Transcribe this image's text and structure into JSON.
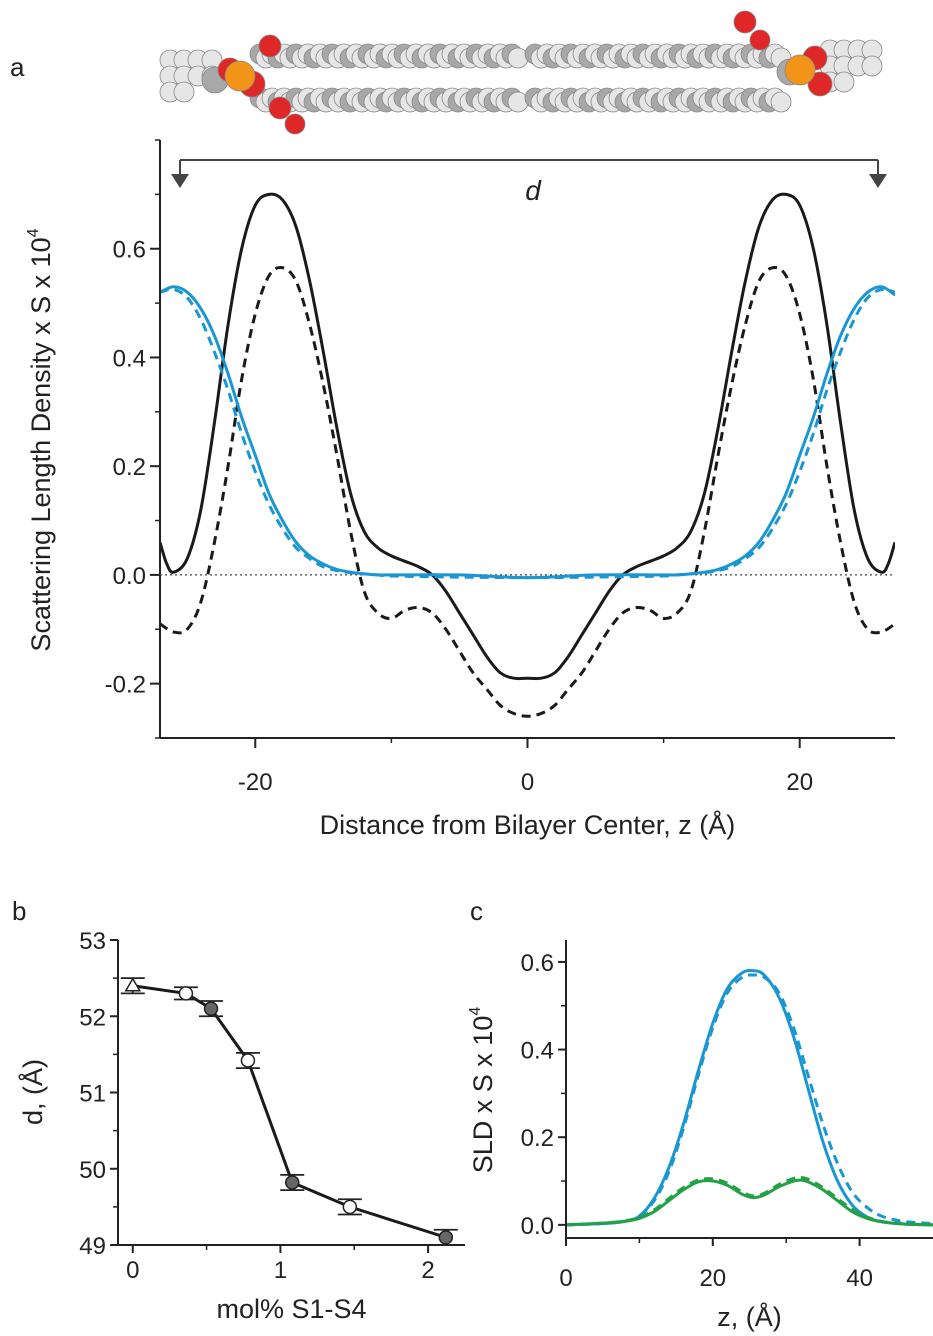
{
  "panels": {
    "a": "a",
    "b": "b",
    "c": "c"
  },
  "annotations": {
    "d_label": "d"
  },
  "colors": {
    "black": "#1a1a1a",
    "blue": "#1a96d2",
    "green": "#22a146",
    "carbon": "#a8a8a8",
    "hydrogen": "#e6e6e6",
    "oxygen": "#e02727",
    "phosphorus": "#f29418"
  },
  "molecule": {
    "description_icon": "lipid-bilayer-spacefill-icon"
  },
  "chart_data": [
    {
      "id": "a",
      "type": "line",
      "xlabel": "Distance from Bilayer Center, z (Å)",
      "ylabel": "Scattering Length Density x S x 10",
      "ylabel_sup": "4",
      "xlim": [
        -27,
        27
      ],
      "ylim": [
        -0.3,
        0.8
      ],
      "xticks": [
        -20,
        0,
        20
      ],
      "xtick_labels": [
        "-20",
        "0",
        "20"
      ],
      "yticks": [
        -0.2,
        0.0,
        0.2,
        0.4,
        0.6
      ],
      "ytick_labels": [
        "-0.2",
        "0.0",
        "0.2",
        "0.4",
        "0.6"
      ],
      "reference_line": 0.0,
      "series": [
        {
          "style": "solid",
          "color": "#1a1a1a",
          "x": [
            -27,
            -26.5,
            -26,
            -25,
            -24,
            -23,
            -22,
            -21,
            -20,
            -19,
            -18,
            -17,
            -16,
            -15,
            -14,
            -13,
            -12,
            -11,
            -10,
            -9,
            -8,
            -7,
            -6,
            -5,
            -4,
            -3,
            -2,
            -1,
            0,
            1,
            2,
            3,
            4,
            5,
            6,
            7,
            8,
            9,
            10,
            11,
            12,
            13,
            14,
            15,
            16,
            17,
            18,
            19,
            20,
            21,
            22,
            23,
            24,
            25,
            26,
            26.5,
            27
          ],
          "y": [
            0.06,
            0.02,
            0.005,
            0.03,
            0.12,
            0.28,
            0.46,
            0.6,
            0.68,
            0.7,
            0.69,
            0.64,
            0.54,
            0.41,
            0.27,
            0.15,
            0.08,
            0.05,
            0.035,
            0.025,
            0.015,
            0.0,
            -0.03,
            -0.07,
            -0.11,
            -0.15,
            -0.18,
            -0.19,
            -0.19,
            -0.19,
            -0.18,
            -0.15,
            -0.11,
            -0.07,
            -0.03,
            0.0,
            0.015,
            0.025,
            0.035,
            0.05,
            0.08,
            0.15,
            0.27,
            0.41,
            0.54,
            0.64,
            0.69,
            0.7,
            0.68,
            0.6,
            0.46,
            0.28,
            0.12,
            0.03,
            0.005,
            0.02,
            0.06
          ]
        },
        {
          "style": "dashed",
          "color": "#1a1a1a",
          "x": [
            -27,
            -26,
            -25,
            -24,
            -23,
            -22,
            -21,
            -20,
            -19,
            -18,
            -17,
            -16,
            -15,
            -14,
            -13,
            -12,
            -11,
            -10,
            -9,
            -8,
            -7,
            -6,
            -5,
            -4,
            -3,
            -2,
            -1,
            0,
            1,
            2,
            3,
            4,
            5,
            6,
            7,
            8,
            9,
            10,
            11,
            12,
            13,
            14,
            15,
            16,
            17,
            18,
            19,
            20,
            21,
            22,
            23,
            24,
            25,
            26,
            27
          ],
          "y": [
            -0.09,
            -0.105,
            -0.1,
            -0.05,
            0.06,
            0.2,
            0.36,
            0.48,
            0.55,
            0.565,
            0.54,
            0.46,
            0.35,
            0.22,
            0.08,
            -0.03,
            -0.07,
            -0.08,
            -0.065,
            -0.06,
            -0.07,
            -0.1,
            -0.14,
            -0.18,
            -0.21,
            -0.24,
            -0.255,
            -0.26,
            -0.255,
            -0.24,
            -0.21,
            -0.18,
            -0.14,
            -0.1,
            -0.07,
            -0.06,
            -0.065,
            -0.08,
            -0.07,
            -0.03,
            0.08,
            0.22,
            0.35,
            0.46,
            0.54,
            0.565,
            0.55,
            0.48,
            0.36,
            0.2,
            0.06,
            -0.05,
            -0.1,
            -0.105,
            -0.09
          ]
        },
        {
          "style": "solid",
          "color": "#1a96d2",
          "x": [
            -27,
            -26,
            -25,
            -24,
            -23,
            -22,
            -21,
            -20,
            -19,
            -18,
            -17,
            -16,
            -15,
            -14,
            -13,
            -12,
            -11,
            -10,
            -5,
            0,
            5,
            10,
            11,
            12,
            13,
            14,
            15,
            16,
            17,
            18,
            19,
            20,
            21,
            22,
            23,
            24,
            25,
            26,
            27
          ],
          "y": [
            0.52,
            0.53,
            0.52,
            0.49,
            0.44,
            0.37,
            0.29,
            0.22,
            0.15,
            0.1,
            0.06,
            0.035,
            0.02,
            0.01,
            0.005,
            0.002,
            0.0,
            0.0,
            0.0,
            -0.005,
            0.0,
            0.0,
            0.0,
            0.002,
            0.005,
            0.01,
            0.02,
            0.035,
            0.06,
            0.1,
            0.15,
            0.22,
            0.29,
            0.37,
            0.44,
            0.49,
            0.52,
            0.53,
            0.515
          ]
        },
        {
          "style": "dashed",
          "color": "#1a96d2",
          "x": [
            -27,
            -26,
            -25,
            -24,
            -23,
            -22,
            -21,
            -20,
            -19,
            -18,
            -17,
            -16,
            -15,
            -14,
            -13,
            -12,
            -11,
            -10,
            -5,
            0,
            5,
            10,
            11,
            12,
            13,
            14,
            15,
            16,
            17,
            18,
            19,
            20,
            21,
            22,
            23,
            24,
            25,
            26,
            27
          ],
          "y": [
            0.52,
            0.525,
            0.51,
            0.47,
            0.41,
            0.34,
            0.26,
            0.19,
            0.13,
            0.085,
            0.05,
            0.03,
            0.015,
            0.008,
            0.004,
            0.002,
            0.0,
            -0.002,
            -0.004,
            -0.005,
            -0.004,
            -0.002,
            0.0,
            0.002,
            0.004,
            0.008,
            0.015,
            0.03,
            0.05,
            0.085,
            0.13,
            0.19,
            0.26,
            0.34,
            0.41,
            0.47,
            0.51,
            0.525,
            0.52
          ]
        }
      ]
    },
    {
      "id": "b",
      "type": "line",
      "xlabel": "mol% S1-S4",
      "ylabel": "d, (Å)",
      "xlim": [
        -0.1,
        2.25
      ],
      "ylim": [
        49,
        53
      ],
      "xticks": [
        0,
        1,
        2
      ],
      "xtick_labels": [
        "0",
        "1",
        "2"
      ],
      "yticks": [
        49,
        50,
        51,
        52,
        53
      ],
      "ytick_labels": [
        "49",
        "50",
        "51",
        "52",
        "53"
      ],
      "points": [
        {
          "x": 0.0,
          "y": 52.4,
          "err": 0.1,
          "marker": "triangle"
        },
        {
          "x": 0.36,
          "y": 52.3,
          "err": 0.08,
          "marker": "open-circle"
        },
        {
          "x": 0.53,
          "y": 52.1,
          "err": 0.1,
          "marker": "filled-circle"
        },
        {
          "x": 0.78,
          "y": 51.42,
          "err": 0.1,
          "marker": "open-circle"
        },
        {
          "x": 1.08,
          "y": 49.82,
          "err": 0.1,
          "marker": "filled-circle"
        },
        {
          "x": 1.47,
          "y": 49.5,
          "err": 0.1,
          "marker": "open-circle"
        },
        {
          "x": 2.12,
          "y": 49.1,
          "err": 0.1,
          "marker": "filled-circle"
        }
      ]
    },
    {
      "id": "c",
      "type": "line",
      "xlabel": "z, (Å)",
      "ylabel": "SLD x S x 10",
      "ylabel_sup": "4",
      "xlim": [
        0,
        50
      ],
      "ylim": [
        -0.03,
        0.65
      ],
      "xticks": [
        0,
        20,
        40
      ],
      "xtick_labels": [
        "0",
        "20",
        "40"
      ],
      "yticks": [
        0.0,
        0.2,
        0.4,
        0.6
      ],
      "ytick_labels": [
        "0.0",
        "0.2",
        "0.4",
        "0.6"
      ],
      "series": [
        {
          "style": "solid",
          "color": "#1a96d2",
          "x": [
            0,
            5,
            8,
            10,
            12,
            14,
            16,
            18,
            20,
            22,
            24,
            25.5,
            27,
            29,
            31,
            33,
            35,
            37,
            39,
            41,
            43,
            46,
            50
          ],
          "y": [
            0.0,
            0.003,
            0.008,
            0.02,
            0.06,
            0.13,
            0.23,
            0.35,
            0.46,
            0.54,
            0.575,
            0.58,
            0.57,
            0.52,
            0.43,
            0.31,
            0.19,
            0.1,
            0.045,
            0.018,
            0.007,
            0.002,
            0.0
          ]
        },
        {
          "style": "dashed",
          "color": "#1a96d2",
          "x": [
            0,
            5,
            8,
            10,
            12,
            14,
            16,
            18,
            20,
            22,
            24,
            25.5,
            27,
            29,
            31,
            33,
            35,
            37,
            39,
            41,
            43,
            46,
            50
          ],
          "y": [
            0.0,
            0.003,
            0.008,
            0.02,
            0.055,
            0.12,
            0.22,
            0.34,
            0.45,
            0.53,
            0.565,
            0.57,
            0.565,
            0.53,
            0.45,
            0.34,
            0.23,
            0.14,
            0.075,
            0.04,
            0.02,
            0.008,
            0.003
          ]
        },
        {
          "style": "solid",
          "color": "#22a146",
          "x": [
            0,
            5,
            8,
            10,
            12,
            14,
            16,
            18,
            20,
            22,
            24,
            25.5,
            27,
            29,
            31,
            32,
            33,
            35,
            37,
            39,
            41,
            43,
            46,
            50
          ],
          "y": [
            0.0,
            0.004,
            0.008,
            0.015,
            0.03,
            0.055,
            0.08,
            0.098,
            0.1,
            0.09,
            0.07,
            0.062,
            0.068,
            0.087,
            0.1,
            0.102,
            0.098,
            0.08,
            0.055,
            0.03,
            0.015,
            0.007,
            0.002,
            0.0
          ]
        },
        {
          "style": "dashed",
          "color": "#22a146",
          "x": [
            0,
            5,
            8,
            10,
            12,
            14,
            16,
            18,
            20,
            22,
            24,
            25.5,
            27,
            29,
            31,
            32,
            33,
            35,
            37,
            39,
            41,
            43,
            46,
            50
          ],
          "y": [
            0.0,
            0.004,
            0.009,
            0.017,
            0.034,
            0.06,
            0.085,
            0.102,
            0.105,
            0.095,
            0.075,
            0.066,
            0.072,
            0.092,
            0.106,
            0.108,
            0.104,
            0.085,
            0.06,
            0.035,
            0.018,
            0.008,
            0.003,
            0.0
          ]
        }
      ]
    }
  ]
}
